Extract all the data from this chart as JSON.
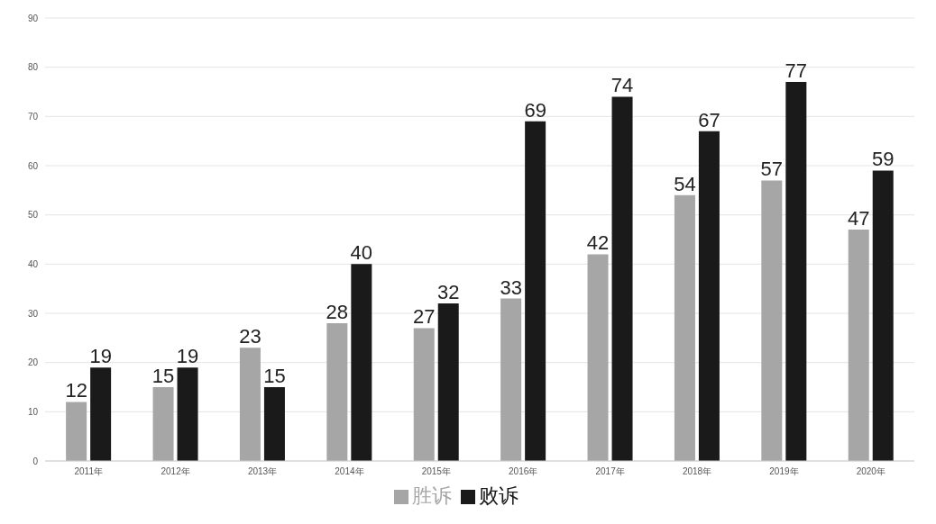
{
  "chart_data": {
    "type": "bar",
    "categories": [
      "2011年",
      "2012年",
      "2013年",
      "2014年",
      "2015年",
      "2016年",
      "2017年",
      "2018年",
      "2019年",
      "2020年"
    ],
    "series": [
      {
        "name": "胜诉",
        "color": "#a6a6a6",
        "values": [
          12,
          15,
          23,
          28,
          27,
          33,
          42,
          54,
          57,
          47
        ]
      },
      {
        "name": "败诉",
        "color": "#1a1a1a",
        "values": [
          19,
          19,
          15,
          40,
          32,
          69,
          74,
          67,
          77,
          59
        ]
      }
    ],
    "ylim": [
      0,
      90
    ],
    "yticks": [
      0,
      10,
      20,
      30,
      40,
      50,
      60,
      70,
      80,
      90
    ],
    "grid": "y",
    "legend": "bottom",
    "data_labels": true
  }
}
